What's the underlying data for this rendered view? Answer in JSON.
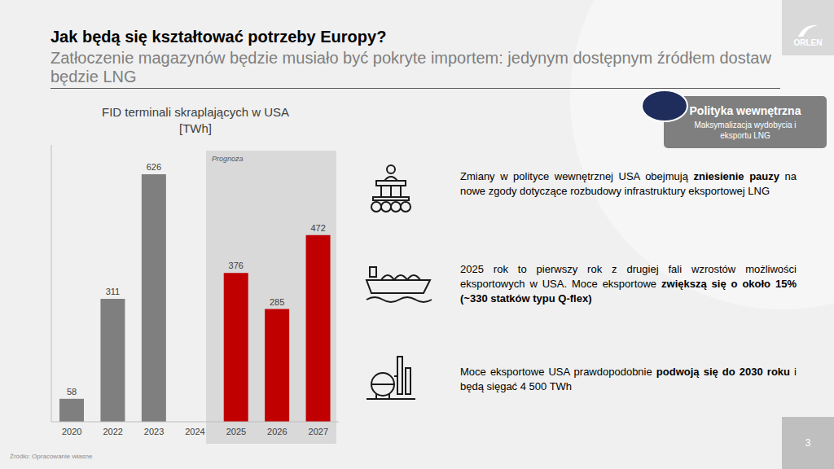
{
  "header": {
    "title": "Jak będą się kształtować potrzeby Europy?",
    "subtitle": "Zatłoczenie magazynów będzie musiało być pokryte importem: jedynym dostępnym źródłem dostaw będzie LNG"
  },
  "logo": "ORLEN",
  "panel": {
    "title": "Polityka wewnętrzna",
    "text": "Maksymalizacja wydobycia i eksportu LNG"
  },
  "bullets": [
    {
      "parts": [
        "Zmiany w polityce wewnętrznej USA obejmują ",
        "zniesienie pauzy",
        " na nowe zgody dotyczące rozbudowy infrastruktury eksportowej LNG"
      ]
    },
    {
      "parts": [
        "2025 rok to pierwszy rok z drugiej fali wzrostów możliwości eksportowych w USA. Moce eksportowe ",
        "zwiększą się o około 15% (~330 statków typu Q-flex)"
      ]
    },
    {
      "parts": [
        "Moce eksportowe USA prawdopodobnie ",
        "podwoją się do 2030 roku",
        " i będą sięgać 4 500 TWh"
      ]
    }
  ],
  "source": "Źródło: Opracowanie własne",
  "page_number": "3",
  "chart_data": {
    "type": "bar",
    "title": "FID terminali skraplających w USA [TWh]",
    "categories": [
      "2020",
      "2022",
      "2023",
      "2024",
      "2025",
      "2026",
      "2027"
    ],
    "values": [
      58,
      311,
      626,
      0,
      376,
      285,
      472
    ],
    "colors": [
      "#7f7f7f",
      "#7f7f7f",
      "#7f7f7f",
      "#7f7f7f",
      "#c00000",
      "#c00000",
      "#c00000"
    ],
    "ylim": [
      0,
      700
    ],
    "data_labels": true,
    "tick_labels": "x",
    "grid": false,
    "annotations": [
      "Prognoza"
    ]
  }
}
